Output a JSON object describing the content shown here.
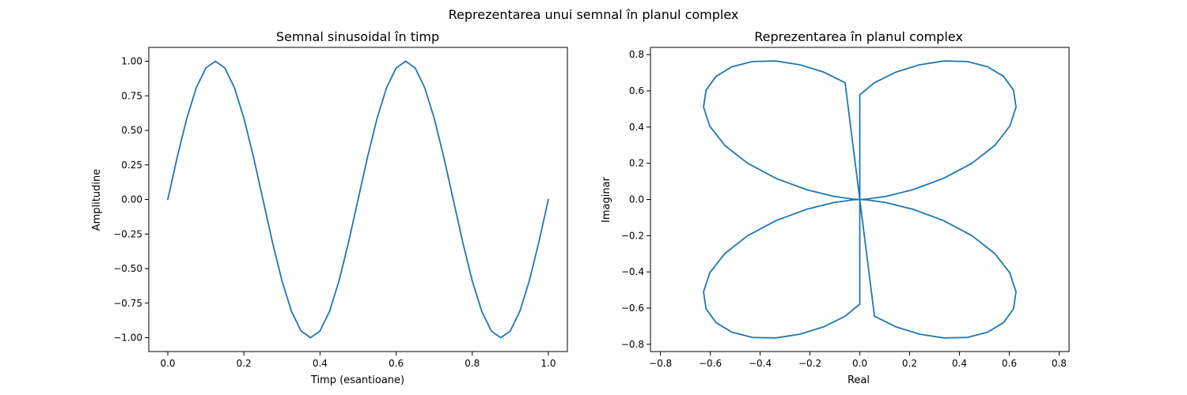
{
  "figure": {
    "suptitle": "Reprezentarea unui semnal în planul complex"
  },
  "chart_data": [
    {
      "type": "line",
      "title": "Semnal sinusoidal în timp",
      "xlabel": "Timp (esantioane)",
      "ylabel": "Amplitudine",
      "xlim": [
        -0.05,
        1.05
      ],
      "ylim": [
        -1.1,
        1.1
      ],
      "xticks": [
        0.0,
        0.2,
        0.4,
        0.6,
        0.8,
        1.0
      ],
      "xtick_labels": [
        "0.0",
        "0.2",
        "0.4",
        "0.6",
        "0.8",
        "1.0"
      ],
      "yticks": [
        -1.0,
        -0.75,
        -0.5,
        -0.25,
        0.0,
        0.25,
        0.5,
        0.75,
        1.0
      ],
      "ytick_labels": [
        "−1.00",
        "−0.75",
        "−0.50",
        "−0.25",
        "0.00",
        "0.25",
        "0.50",
        "0.75",
        "1.00"
      ],
      "grid": false,
      "series": [
        {
          "color": "#1f77b4",
          "x": [
            0.0,
            0.025,
            0.05,
            0.075,
            0.1,
            0.125,
            0.15,
            0.175,
            0.2,
            0.225,
            0.25,
            0.275,
            0.3,
            0.325,
            0.35,
            0.375,
            0.4,
            0.425,
            0.45,
            0.475,
            0.5,
            0.525,
            0.55,
            0.575,
            0.6,
            0.625,
            0.65,
            0.675,
            0.7,
            0.725,
            0.75,
            0.775,
            0.8,
            0.825,
            0.85,
            0.875,
            0.9,
            0.925,
            0.95,
            0.975,
            1.0
          ],
          "y": [
            0.0,
            0.309,
            0.588,
            0.809,
            0.951,
            1.0,
            0.951,
            0.809,
            0.588,
            0.309,
            0.0,
            -0.309,
            -0.588,
            -0.809,
            -0.951,
            -1.0,
            -0.951,
            -0.809,
            -0.588,
            -0.309,
            0.0,
            0.309,
            0.588,
            0.809,
            0.951,
            1.0,
            0.951,
            0.809,
            0.588,
            0.309,
            0.0,
            -0.309,
            -0.588,
            -0.809,
            -0.951,
            -1.0,
            -0.951,
            -0.809,
            -0.588,
            -0.309,
            0.0
          ]
        }
      ]
    },
    {
      "type": "line",
      "title": "Reprezentarea în planul complex",
      "xlabel": "Real",
      "ylabel": "Imaginar",
      "xlim": [
        -0.84,
        0.84
      ],
      "ylim": [
        -0.84,
        0.84
      ],
      "xticks": [
        -0.8,
        -0.6,
        -0.4,
        -0.2,
        0.0,
        0.2,
        0.4,
        0.6,
        0.8
      ],
      "xtick_labels": [
        "−0.8",
        "−0.6",
        "−0.4",
        "−0.2",
        "0.0",
        "0.2",
        "0.4",
        "0.6",
        "0.8"
      ],
      "yticks": [
        -0.8,
        -0.6,
        -0.4,
        -0.2,
        0.0,
        0.2,
        0.4,
        0.6,
        0.8
      ],
      "ytick_labels": [
        "−0.8",
        "−0.6",
        "−0.4",
        "−0.2",
        "0.0",
        "0.2",
        "0.4",
        "0.6",
        "0.8"
      ],
      "grid": false,
      "series": [
        {
          "color": "#1f77b4",
          "x": [
            0.0,
            0.027,
            0.104,
            0.213,
            0.335,
            0.45,
            0.542,
            0.602,
            0.627,
            0.617,
            0.577,
            0.513,
            0.431,
            0.338,
            0.24,
            0.144,
            0.059,
            0.0,
            0.0,
            -0.059,
            -0.144,
            -0.24,
            -0.338,
            -0.431,
            -0.513,
            -0.577,
            -0.617,
            -0.627,
            -0.602,
            -0.542,
            -0.45,
            -0.335,
            -0.213,
            -0.104,
            -0.027,
            0.0,
            -0.027,
            -0.104,
            -0.213,
            -0.335,
            -0.45,
            -0.542,
            -0.602,
            -0.627,
            -0.617,
            -0.577,
            -0.513,
            -0.431,
            -0.338,
            -0.24,
            -0.144,
            -0.059,
            0.0,
            0.0,
            0.059,
            0.144,
            0.24,
            0.338,
            0.431,
            0.513,
            0.577,
            0.617,
            0.627,
            0.602,
            0.542,
            0.45,
            0.335,
            0.213,
            0.104,
            0.027,
            0.0
          ],
          "y": [
            0.0,
            0.002,
            0.017,
            0.054,
            0.116,
            0.2,
            0.299,
            0.405,
            0.51,
            0.604,
            0.68,
            0.733,
            0.762,
            0.765,
            0.744,
            0.703,
            0.645,
            0.578,
            0.0,
            0.645,
            0.703,
            0.744,
            0.765,
            0.762,
            0.733,
            0.68,
            0.604,
            0.51,
            0.405,
            0.299,
            0.2,
            0.116,
            0.054,
            0.017,
            0.002,
            0.0,
            -0.002,
            -0.017,
            -0.054,
            -0.116,
            -0.2,
            -0.299,
            -0.405,
            -0.51,
            -0.604,
            -0.68,
            -0.733,
            -0.762,
            -0.765,
            -0.744,
            -0.703,
            -0.645,
            -0.578,
            0.0,
            -0.645,
            -0.703,
            -0.744,
            -0.765,
            -0.762,
            -0.733,
            -0.68,
            -0.604,
            -0.51,
            -0.405,
            -0.299,
            -0.2,
            -0.116,
            -0.054,
            -0.017,
            -0.002,
            0.0
          ]
        }
      ]
    }
  ]
}
